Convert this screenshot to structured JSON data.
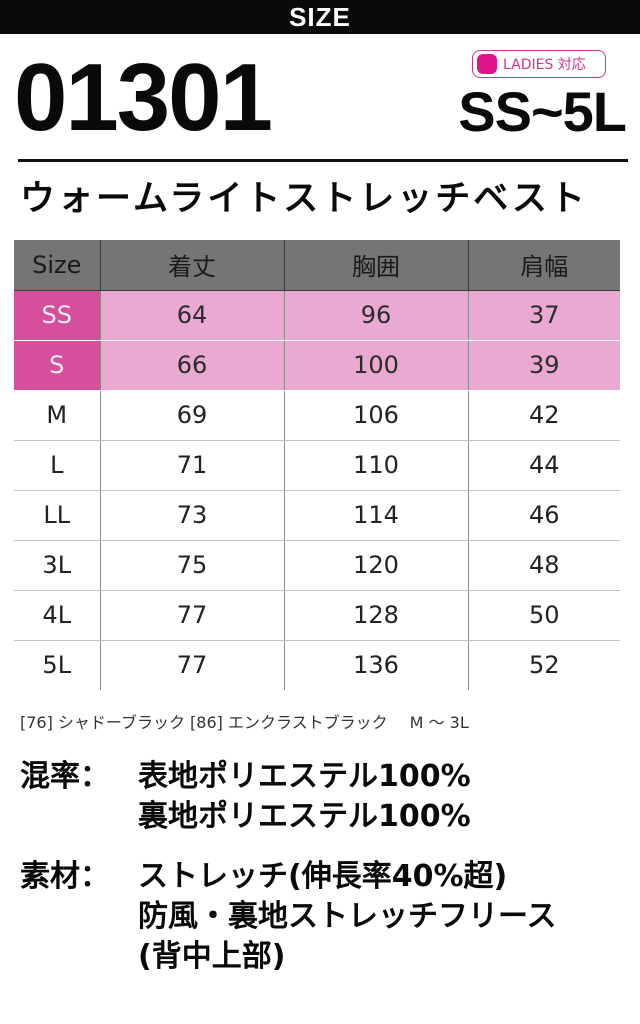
{
  "banner": {
    "title": "SIZE"
  },
  "product": {
    "model": "01301",
    "ladies_badge": "LADIES 対応",
    "size_range": "SS~5L",
    "name": "ウォームライトストレッチベスト"
  },
  "table": {
    "headers": [
      "Size",
      "着丈",
      "胸囲",
      "肩幅"
    ],
    "rows": [
      {
        "size": "SS",
        "length": "64",
        "chest": "96",
        "shoulder": "37",
        "ladies": true
      },
      {
        "size": "S",
        "length": "66",
        "chest": "100",
        "shoulder": "39",
        "ladies": true
      },
      {
        "size": "M",
        "length": "69",
        "chest": "106",
        "shoulder": "42",
        "ladies": false
      },
      {
        "size": "L",
        "length": "71",
        "chest": "110",
        "shoulder": "44",
        "ladies": false
      },
      {
        "size": "LL",
        "length": "73",
        "chest": "114",
        "shoulder": "46",
        "ladies": false
      },
      {
        "size": "3L",
        "length": "75",
        "chest": "120",
        "shoulder": "48",
        "ladies": false
      },
      {
        "size": "4L",
        "length": "77",
        "chest": "128",
        "shoulder": "50",
        "ladies": false
      },
      {
        "size": "5L",
        "length": "77",
        "chest": "136",
        "shoulder": "52",
        "ladies": false
      }
    ]
  },
  "colors": {
    "text": "[76] シャドーブラック [86] エンクラストブラック",
    "sizes": "M 〜 3L"
  },
  "specs": {
    "mix_label": "混率：",
    "mix_lines": [
      "表地ポリエステル100%",
      "裏地ポリエステル100%"
    ],
    "material_label": "素材：",
    "material_lines": [
      "ストレッチ(伸長率40%超)",
      "防風・裏地ストレッチフリース",
      "(背中上部)"
    ]
  },
  "theme": {
    "ladies_pink": "#e0138a",
    "row_pink": "#eaa9d2",
    "size_pink": "#d64f9c",
    "header_gray": "#757575"
  }
}
